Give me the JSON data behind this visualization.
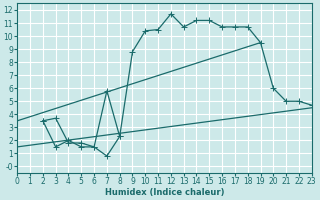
{
  "xlabel": "Humidex (Indice chaleur)",
  "xlim": [
    0,
    23
  ],
  "ylim": [
    -0.5,
    12.5
  ],
  "xticks": [
    0,
    1,
    2,
    3,
    4,
    5,
    6,
    7,
    8,
    9,
    10,
    11,
    12,
    13,
    14,
    15,
    16,
    17,
    18,
    19,
    20,
    21,
    22,
    23
  ],
  "yticks": [
    0,
    1,
    2,
    3,
    4,
    5,
    6,
    7,
    8,
    9,
    10,
    11,
    12
  ],
  "ytick_labels": [
    "-0",
    "1",
    "2",
    "3",
    "4",
    "5",
    "6",
    "7",
    "8",
    "9",
    "10",
    "11",
    "12"
  ],
  "bg_color": "#cde9e9",
  "line_color": "#1a6b6b",
  "grid_color": "#ffffff",
  "line1_x": [
    2,
    3,
    4,
    5,
    6,
    7,
    8,
    9,
    10,
    11,
    12,
    13,
    14,
    15,
    16,
    17,
    18,
    19,
    20,
    21,
    22,
    23
  ],
  "line1_y": [
    3.5,
    3.7,
    1.8,
    1.8,
    1.5,
    5.8,
    2.3,
    8.8,
    10.4,
    10.5,
    11.7,
    10.7,
    11.2,
    11.2,
    10.7,
    10.7,
    10.7,
    9.5,
    6.0,
    5.0,
    5.0,
    4.7
  ],
  "line2_x": [
    0,
    19
  ],
  "line2_y": [
    3.5,
    9.5
  ],
  "line3_x": [
    0,
    23
  ],
  "line3_y": [
    1.5,
    4.5
  ],
  "line4_x": [
    2,
    3,
    4,
    5,
    6,
    7,
    8
  ],
  "line4_y": [
    3.5,
    1.5,
    2.0,
    1.5,
    1.5,
    0.8,
    2.3
  ]
}
